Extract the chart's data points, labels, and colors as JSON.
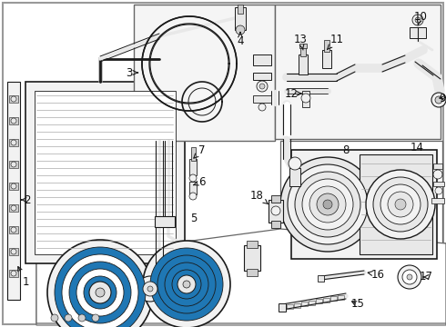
{
  "bg_color": "#ffffff",
  "line_color": "#1a1a1a",
  "gray_fill": "#e8e8e8",
  "light_gray": "#f2f2f2",
  "mid_gray": "#d0d0d0",
  "dark_gray": "#aaaaaa",
  "box_color": "#cccccc",
  "outer_border": "#888888",
  "label_fontsize": 8.5,
  "small_fontsize": 7.0
}
